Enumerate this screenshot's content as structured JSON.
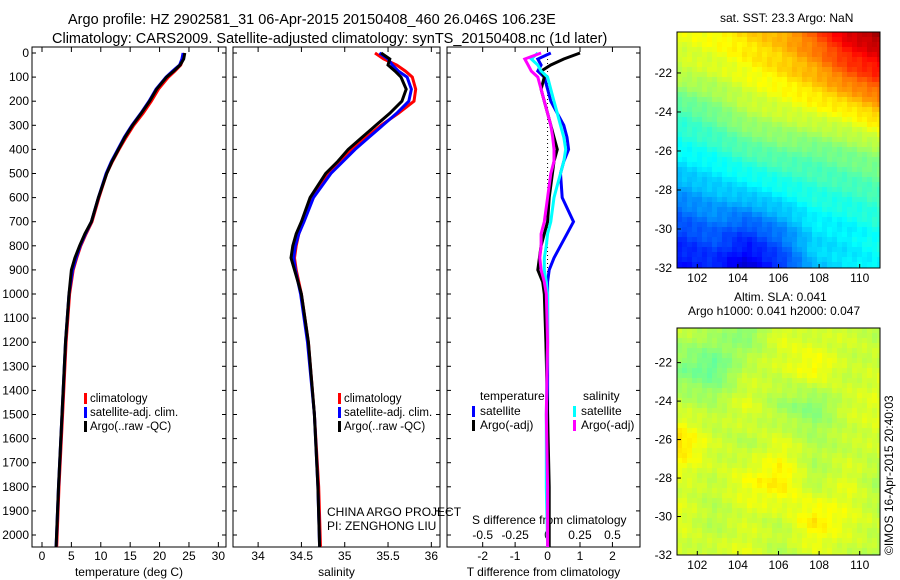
{
  "title": {
    "line1": "Argo profile: HZ 2902581_31 06-Apr-2015 20150408_460 26.046S 106.23E",
    "line2": "Climatology: CARS2009. Satellite-adjusted climatology: synTS_20150408.nc (1d later)"
  },
  "credits": {
    "project": "CHINA ARGO PROJECT",
    "pi": "PI: ZENGHONG LIU",
    "copyright": "©IMOS 16-Apr-2015 20:40:03"
  },
  "chart_data": [
    {
      "type": "line",
      "id": "temperature",
      "xlabel": "temperature (deg C)",
      "xlim": [
        -1.7,
        31.3
      ],
      "xticks": [
        "0",
        "5",
        "10",
        "15",
        "20",
        "25",
        "30"
      ],
      "ylim": [
        0,
        2080
      ],
      "yticks": [
        "0",
        "100",
        "200",
        "300",
        "400",
        "500",
        "600",
        "700",
        "800",
        "900",
        "1000",
        "1100",
        "1200",
        "1300",
        "1400",
        "1500",
        "1600",
        "1700",
        "1800",
        "1900",
        "2000"
      ],
      "depth": [
        0,
        25,
        50,
        75,
        100,
        150,
        200,
        250,
        300,
        350,
        400,
        450,
        500,
        600,
        700,
        750,
        800,
        850,
        900,
        950,
        1000,
        1200,
        1500,
        1800,
        2050
      ],
      "series": [
        {
          "name": "climatology",
          "color": "#ff0000",
          "values": [
            24.2,
            24.0,
            23.6,
            22.6,
            21.5,
            19.8,
            18.6,
            17.2,
            15.6,
            14.3,
            13.1,
            12.0,
            11.0,
            9.7,
            8.5,
            7.5,
            6.6,
            5.9,
            5.3,
            5.0,
            4.7,
            4.1,
            3.5,
            2.9,
            2.5
          ]
        },
        {
          "name": "satellite-adj. clim.",
          "color": "#0000ff",
          "values": [
            24.0,
            23.8,
            23.4,
            22.2,
            21.1,
            19.4,
            18.2,
            16.8,
            15.3,
            14.0,
            12.9,
            11.8,
            10.9,
            9.6,
            8.4,
            7.4,
            6.5,
            5.8,
            5.2,
            4.9,
            4.6,
            4.0,
            3.4,
            2.8,
            2.4
          ]
        },
        {
          "name": "Argo(..raw -QC)",
          "color": "#000000",
          "values": [
            24.3,
            24.1,
            23.5,
            22.4,
            21.2,
            19.5,
            18.3,
            16.9,
            15.4,
            14.1,
            13.0,
            11.9,
            11.0,
            9.6,
            8.4,
            7.3,
            6.4,
            5.6,
            5.0,
            4.8,
            4.6,
            4.0,
            3.4,
            2.8,
            2.4
          ]
        }
      ]
    },
    {
      "type": "line",
      "id": "salinity",
      "xlabel": "salinity",
      "xlim": [
        33.71,
        36.1
      ],
      "xticks": [
        "34",
        "34.5",
        "35",
        "35.5",
        "36"
      ],
      "depth": [
        0,
        25,
        50,
        75,
        100,
        150,
        200,
        250,
        300,
        350,
        400,
        450,
        500,
        600,
        700,
        750,
        800,
        850,
        900,
        950,
        1000,
        1200,
        1500,
        1800,
        2050
      ],
      "series": [
        {
          "name": "climatology",
          "color": "#ff0000",
          "values": [
            35.35,
            35.45,
            35.6,
            35.7,
            35.78,
            35.82,
            35.8,
            35.62,
            35.42,
            35.25,
            35.08,
            34.95,
            34.8,
            34.62,
            34.52,
            34.47,
            34.44,
            34.42,
            34.44,
            34.47,
            34.5,
            34.58,
            34.65,
            34.7,
            34.72
          ]
        },
        {
          "name": "satellite-adj. clim.",
          "color": "#0000ff",
          "values": [
            35.4,
            35.5,
            35.55,
            35.62,
            35.72,
            35.77,
            35.74,
            35.6,
            35.44,
            35.28,
            35.12,
            34.98,
            34.84,
            34.64,
            34.53,
            34.47,
            34.43,
            34.41,
            34.43,
            34.46,
            34.49,
            34.57,
            34.65,
            34.69,
            34.71
          ]
        },
        {
          "name": "Argo(..raw -QC)",
          "color": "#000000",
          "values": [
            35.42,
            35.52,
            35.5,
            35.58,
            35.65,
            35.71,
            35.66,
            35.52,
            35.36,
            35.2,
            35.04,
            34.92,
            34.78,
            34.6,
            34.5,
            34.44,
            34.4,
            34.38,
            34.42,
            34.46,
            34.5,
            34.58,
            34.65,
            34.69,
            34.71
          ]
        }
      ]
    },
    {
      "type": "line",
      "id": "differences",
      "xlabel": "T difference from climatology",
      "xlim": [
        -3.1,
        2.85
      ],
      "xticks": [
        "-2",
        "-1",
        "0",
        "1",
        "2"
      ],
      "x2label": "S difference from climatology",
      "x2ticks": [
        "-0.5",
        "-0.25",
        "0",
        "0.25",
        "0.5"
      ],
      "legend": {
        "temperature_heading": "temperature",
        "salinity_heading": "salinity"
      },
      "depth": [
        0,
        25,
        50,
        75,
        100,
        150,
        200,
        250,
        300,
        350,
        400,
        450,
        500,
        600,
        700,
        750,
        800,
        850,
        900,
        950,
        1000,
        1200,
        1500,
        1800,
        2050
      ],
      "series": [
        {
          "name": "satellite",
          "group": "temperature",
          "color": "#0000ff",
          "unit": "T",
          "values": [
            0.1,
            -0.3,
            -0.2,
            -0.3,
            -0.1,
            0.0,
            0.1,
            0.3,
            0.5,
            0.6,
            0.65,
            0.5,
            0.4,
            0.45,
            0.8,
            0.6,
            0.4,
            0.2,
            0.05,
            0,
            0,
            0,
            0,
            0,
            0
          ]
        },
        {
          "name": "Argo(-adj)",
          "group": "temperature",
          "color": "#000000",
          "unit": "T",
          "values": [
            1.0,
            0.5,
            0.1,
            -0.2,
            -0.1,
            -0.2,
            -0.1,
            0.0,
            0.1,
            0.2,
            0.3,
            0.2,
            0.15,
            0.05,
            0,
            -0.1,
            -0.2,
            -0.25,
            -0.3,
            -0.15,
            -0.1,
            -0.05,
            0,
            0.05,
            0.05
          ]
        },
        {
          "name": "satellite",
          "group": "salinity",
          "color": "#00ffff",
          "unit": "S",
          "values": [
            -0.075,
            -0.125,
            -0.075,
            -0.05,
            0,
            0.025,
            0.05,
            0.075,
            0.1,
            0.125,
            0.14,
            0.125,
            0.1,
            0.05,
            0.025,
            0,
            -0.01,
            -0.025,
            -0.025,
            -0.01,
            0,
            0,
            -0.01,
            -0.01,
            0
          ]
        },
        {
          "name": "Argo(-adj)",
          "group": "salinity",
          "color": "#ff00ff",
          "unit": "S",
          "values": [
            -0.05,
            -0.175,
            -0.15,
            -0.125,
            -0.075,
            -0.05,
            -0.025,
            0,
            0.025,
            0.04,
            0.05,
            0.05,
            0.025,
            0,
            -0.025,
            -0.05,
            -0.05,
            -0.06,
            -0.05,
            -0.025,
            -0.01,
            0,
            -0.01,
            0,
            0
          ]
        }
      ]
    },
    {
      "type": "heatmap",
      "id": "sst_map",
      "title": "sat. SST: 23.3 Argo: NaN",
      "xlim": [
        101,
        111
      ],
      "ylim": [
        -32,
        -19.9
      ],
      "clim": [
        18,
        26
      ],
      "xticks": [
        "102",
        "104",
        "106",
        "108",
        "110"
      ],
      "yticks": [
        "-22",
        "-24",
        "-26",
        "-28",
        "-30",
        "-32"
      ],
      "grid": [
        [
          22.8,
          23.0,
          23.3,
          23.6,
          24.3,
          25.3,
          25.8
        ],
        [
          22.5,
          22.6,
          22.9,
          23.2,
          23.6,
          24.3,
          24.8
        ],
        [
          21.5,
          21.9,
          22.4,
          22.6,
          22.8,
          23.0,
          23.5
        ],
        [
          21.0,
          21.2,
          21.6,
          21.8,
          21.8,
          22.0,
          22.2
        ],
        [
          20.2,
          20.5,
          20.7,
          21.0,
          21.3,
          21.4,
          21.6
        ],
        [
          19.5,
          19.8,
          19.5,
          20.0,
          20.8,
          20.9,
          21.2
        ],
        [
          19.0,
          19.2,
          18.6,
          19.3,
          20.5,
          20.8,
          21.0
        ]
      ]
    },
    {
      "type": "heatmap",
      "id": "sla_map",
      "title": "Altim. SLA: 0.041",
      "subtitle": "Argo h1000: 0.041 h2000: 0.047",
      "xlim": [
        101,
        111
      ],
      "ylim": [
        -32,
        -20.2
      ],
      "clim": [
        -0.3,
        0.3
      ],
      "xticks": [
        "102",
        "104",
        "106",
        "108",
        "110"
      ],
      "yticks": [
        "-22",
        "-24",
        "-26",
        "-28",
        "-30",
        "-32"
      ],
      "grid": [
        [
          0.04,
          0.03,
          0.0,
          0.06,
          0.04,
          0.05,
          0.03
        ],
        [
          0.0,
          -0.02,
          0.04,
          0.05,
          0.08,
          0.04,
          0.05
        ],
        [
          0.04,
          0.03,
          0.06,
          0.02,
          0.0,
          0.05,
          0.06
        ],
        [
          0.1,
          0.05,
          0.03,
          0.06,
          0.03,
          0.04,
          0.05
        ],
        [
          0.05,
          0.04,
          0.07,
          0.09,
          0.03,
          0.06,
          0.02
        ],
        [
          0.06,
          0.03,
          0.05,
          0.04,
          0.09,
          0.06,
          0.04
        ],
        [
          0.04,
          0.05,
          0.06,
          0.03,
          0.05,
          0.04,
          0.03
        ]
      ]
    }
  ]
}
